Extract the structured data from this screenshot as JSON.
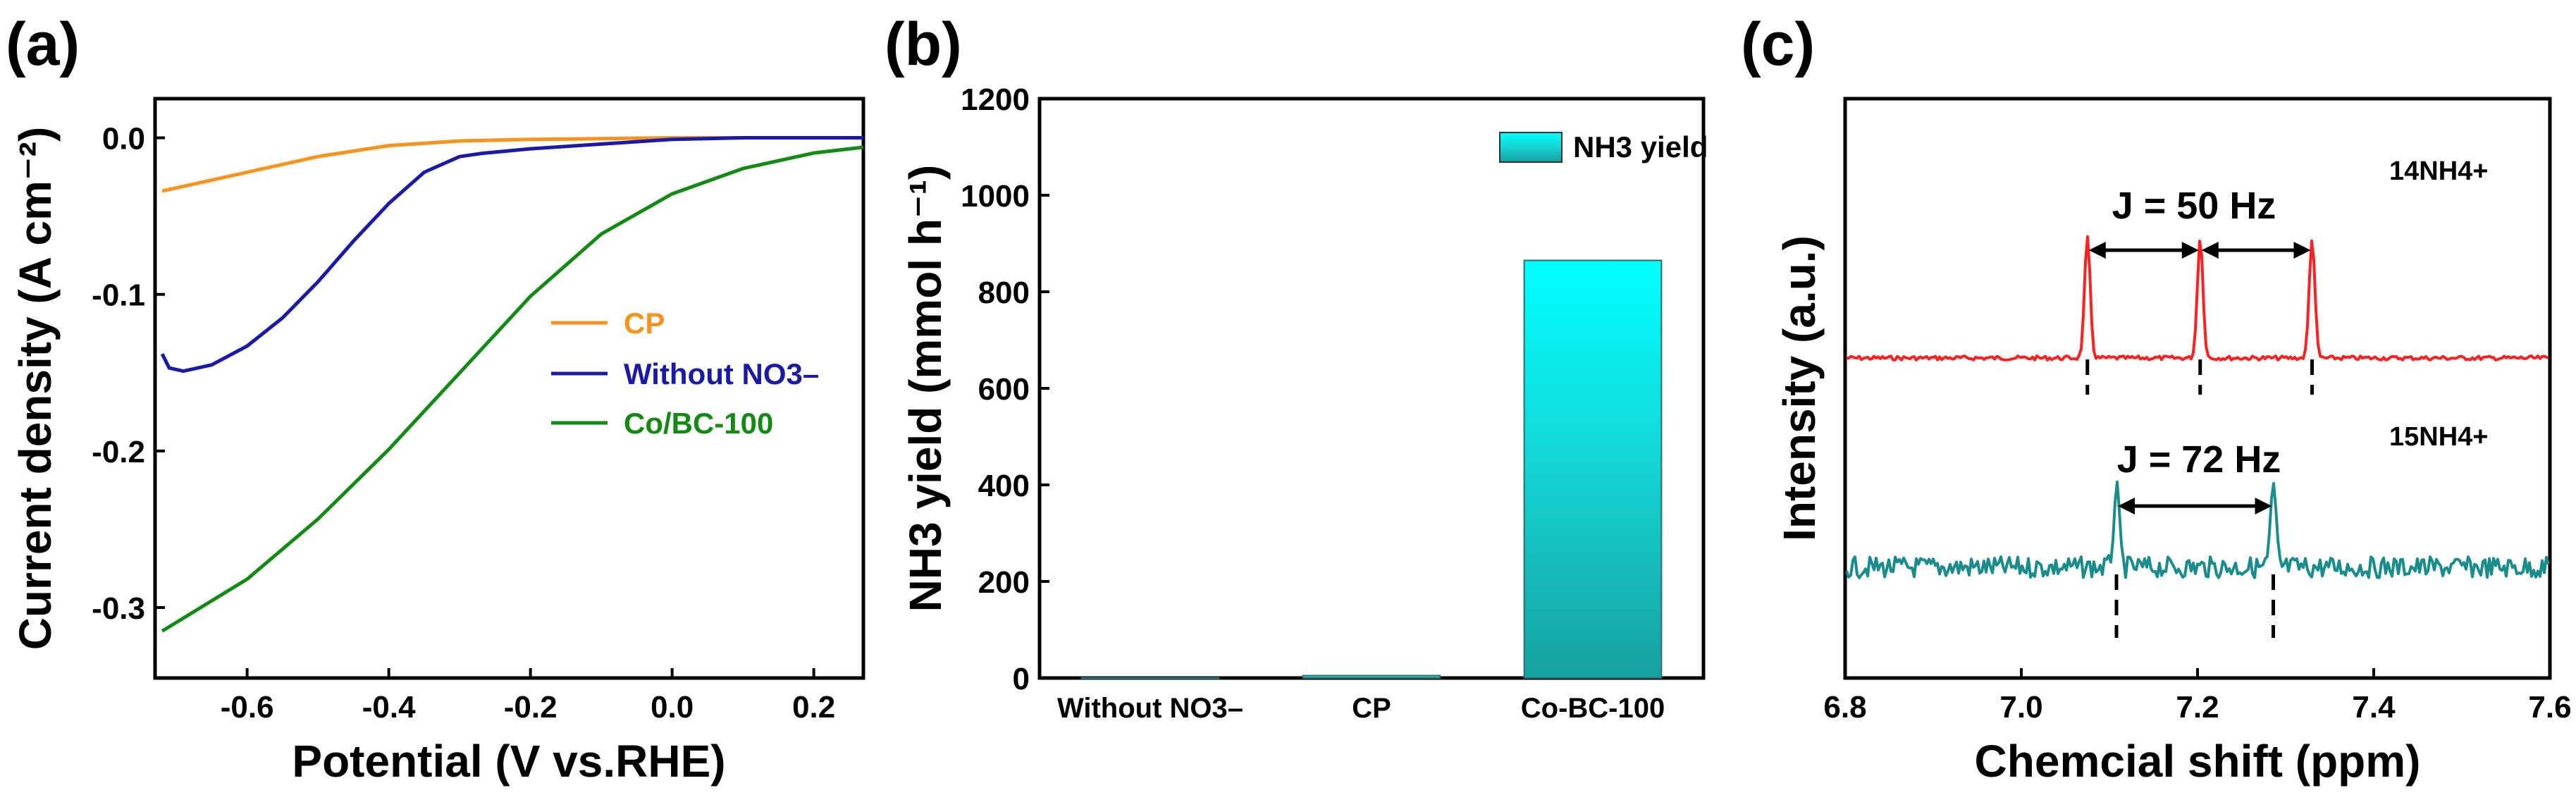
{
  "chart_data": [
    {
      "panel": "(a)",
      "type": "line",
      "xlabel": "Potential (V vs.RHE)",
      "ylabel": "Current density (A cm⁻²)",
      "xlim": [
        -0.73,
        0.27
      ],
      "ylim": [
        -0.345,
        0.025
      ],
      "xticks": [
        -0.6,
        -0.4,
        -0.2,
        0.0,
        0.2
      ],
      "xtick_labels": [
        "-0.6",
        "-0.4",
        "-0.2",
        "0.0",
        "0.2"
      ],
      "yticks": [
        0.0,
        -0.1,
        -0.2,
        -0.3
      ],
      "ytick_labels": [
        "0.0",
        "-0.1",
        "-0.2",
        "-0.3"
      ],
      "series": [
        {
          "name": "CP",
          "color": "#f7931e",
          "x": [
            -0.72,
            -0.6,
            -0.5,
            -0.4,
            -0.3,
            -0.2,
            -0.1,
            0.0,
            0.1,
            0.27
          ],
          "y": [
            -0.034,
            -0.022,
            -0.012,
            -0.005,
            -0.002,
            -0.001,
            -0.0005,
            0.0,
            0.0,
            0.0
          ]
        },
        {
          "name": "Without NO3–",
          "color": "#1a1aa6",
          "x": [
            -0.72,
            -0.71,
            -0.69,
            -0.65,
            -0.6,
            -0.55,
            -0.5,
            -0.45,
            -0.4,
            -0.35,
            -0.3,
            -0.27,
            -0.2,
            -0.1,
            0.0,
            0.1,
            0.27
          ],
          "y": [
            -0.138,
            -0.147,
            -0.149,
            -0.145,
            -0.133,
            -0.115,
            -0.092,
            -0.066,
            -0.042,
            -0.022,
            -0.012,
            -0.01,
            -0.007,
            -0.004,
            -0.001,
            0.0,
            0.0
          ]
        },
        {
          "name": "Co/BC-100",
          "color": "#138a13",
          "x": [
            -0.72,
            -0.6,
            -0.5,
            -0.4,
            -0.3,
            -0.2,
            -0.1,
            0.0,
            0.1,
            0.2,
            0.27
          ],
          "y": [
            -0.315,
            -0.283,
            -0.245,
            -0.2,
            -0.15,
            -0.1,
            -0.06,
            -0.035,
            -0.02,
            -0.011,
            -0.006
          ]
        }
      ],
      "legend": {
        "position": "center-right",
        "entries": [
          "CP",
          "Without NO3–",
          "Co/BC-100"
        ]
      }
    },
    {
      "panel": "(b)",
      "type": "bar",
      "xlabel": "",
      "ylabel": "NH3 yield (mmol h⁻¹)",
      "categories": [
        "Without NO3–",
        "CP",
        "Co-BC-100"
      ],
      "values": [
        0.5,
        5,
        865
      ],
      "ylim": [
        0,
        1200
      ],
      "yticks": [
        0,
        200,
        400,
        600,
        800,
        1000,
        1200
      ],
      "ytick_labels": [
        "0",
        "200",
        "400",
        "600",
        "800",
        "1000",
        "1200"
      ],
      "legend": {
        "position": "top-right",
        "entries": [
          "NH3 yield"
        ]
      },
      "bar_color_top": "#00ffff",
      "bar_color_bottom": "#17a0a0"
    },
    {
      "panel": "(c)",
      "type": "line",
      "xlabel": "Chemcial shift (ppm)",
      "ylabel": "Intensity (a.u.)",
      "xlim": [
        6.8,
        7.6
      ],
      "xticks": [
        6.8,
        7.0,
        7.2,
        7.4,
        7.6
      ],
      "xtick_labels": [
        "6.8",
        "7.0",
        "7.2",
        "7.4",
        "7.6"
      ],
      "series": [
        {
          "name": "14NH4+",
          "color": "#ff2020",
          "peaks_ppm": [
            7.075,
            7.203,
            7.33
          ],
          "coupling_label": "J = 50 Hz"
        },
        {
          "name": "15NH4+",
          "color": "#1a8c8c",
          "peaks_ppm": [
            7.108,
            7.286
          ],
          "coupling_label": "J = 72 Hz"
        }
      ]
    }
  ]
}
